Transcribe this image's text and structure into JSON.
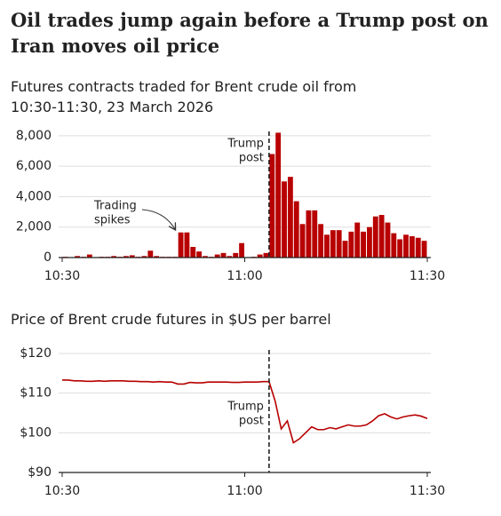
{
  "headline": "Oil trades jump again before a Trump post on Iran moves oil price",
  "chart_data": [
    {
      "type": "bar",
      "title": "Futures contracts traded for Brent crude oil from 10:30-11:30, 23 March 2026",
      "x": [
        0,
        1,
        2,
        3,
        4,
        5,
        6,
        7,
        8,
        9,
        10,
        11,
        12,
        13,
        14,
        15,
        16,
        17,
        18,
        19,
        20,
        21,
        22,
        23,
        24,
        25,
        26,
        27,
        28,
        29,
        30,
        31,
        32,
        33,
        34,
        35,
        36,
        37,
        38,
        39,
        40,
        41,
        42,
        43,
        44,
        45,
        46,
        47,
        48,
        49,
        50,
        51,
        52,
        53,
        54,
        55,
        56,
        57,
        58,
        59
      ],
      "values": [
        50,
        0,
        100,
        50,
        200,
        0,
        50,
        50,
        100,
        50,
        100,
        150,
        50,
        100,
        450,
        100,
        50,
        50,
        50,
        1650,
        1650,
        700,
        400,
        100,
        50,
        200,
        300,
        100,
        300,
        950,
        0,
        50,
        200,
        300,
        6800,
        8200,
        5000,
        5300,
        3700,
        2200,
        3100,
        3100,
        2200,
        1500,
        1800,
        1800,
        1100,
        1700,
        2300,
        1700,
        2000,
        2700,
        2800,
        2300,
        1600,
        1200,
        1500,
        1400,
        1300,
        1100
      ],
      "color": "#b80000",
      "xlim": [
        0,
        60
      ],
      "xticks": [
        {
          "value": 0,
          "label": "10:30"
        },
        {
          "value": 30,
          "label": "11:00"
        },
        {
          "value": 60,
          "label": "11:30"
        }
      ],
      "ylim": [
        0,
        8400
      ],
      "yticks": [
        0,
        {
          "value": 2000,
          "label": "2,000"
        },
        {
          "value": 4000,
          "label": "4,000"
        },
        {
          "value": 6000,
          "label": "6,000"
        },
        {
          "value": 8000,
          "label": "8,000"
        }
      ],
      "grid": true,
      "annotations": [
        {
          "lines": [
            "Trump",
            "post"
          ],
          "x": 34
        },
        {
          "lines": [
            "Trading",
            "spikes"
          ]
        }
      ]
    },
    {
      "type": "line",
      "title": "Price of Brent crude futures in $US per barrel",
      "x": [
        0,
        1,
        2,
        3,
        4,
        5,
        6,
        7,
        8,
        9,
        10,
        11,
        12,
        13,
        14,
        15,
        16,
        17,
        18,
        19,
        20,
        21,
        22,
        23,
        24,
        25,
        26,
        27,
        28,
        29,
        30,
        31,
        32,
        33,
        34,
        35,
        36,
        37,
        38,
        39,
        40,
        41,
        42,
        43,
        44,
        45,
        46,
        47,
        48,
        49,
        50,
        51,
        52,
        53,
        54,
        55,
        56,
        57,
        58,
        59,
        60
      ],
      "values": [
        113.3,
        113.3,
        113.1,
        113.1,
        113.0,
        113.0,
        113.1,
        113.0,
        113.1,
        113.1,
        113.1,
        113.0,
        113.0,
        112.9,
        112.9,
        112.8,
        112.9,
        112.8,
        112.8,
        112.3,
        112.3,
        112.7,
        112.6,
        112.6,
        112.8,
        112.8,
        112.8,
        112.8,
        112.7,
        112.7,
        112.8,
        112.8,
        112.8,
        112.9,
        112.9,
        108,
        101,
        103,
        97.5,
        98.5,
        100,
        101.5,
        100.8,
        100.8,
        101.3,
        101,
        101.5,
        102,
        101.7,
        101.7,
        102,
        103,
        104.3,
        104.8,
        104,
        103.5,
        104,
        104.3,
        104.5,
        104.2,
        103.6
      ],
      "color": "#b80000",
      "xlim": [
        0,
        60
      ],
      "xticks": [
        {
          "value": 0,
          "label": "10:30"
        },
        {
          "value": 30,
          "label": "11:00"
        },
        {
          "value": 60,
          "label": "11:30"
        }
      ],
      "ylim": [
        90,
        120
      ],
      "yticks": [
        {
          "value": 90,
          "label": "$90"
        },
        {
          "value": 100,
          "label": "$100"
        },
        {
          "value": 110,
          "label": "$110"
        },
        {
          "value": 120,
          "label": "$120"
        }
      ],
      "grid": true,
      "annotations": [
        {
          "lines": [
            "Trump",
            "post"
          ],
          "x": 34
        }
      ]
    }
  ]
}
